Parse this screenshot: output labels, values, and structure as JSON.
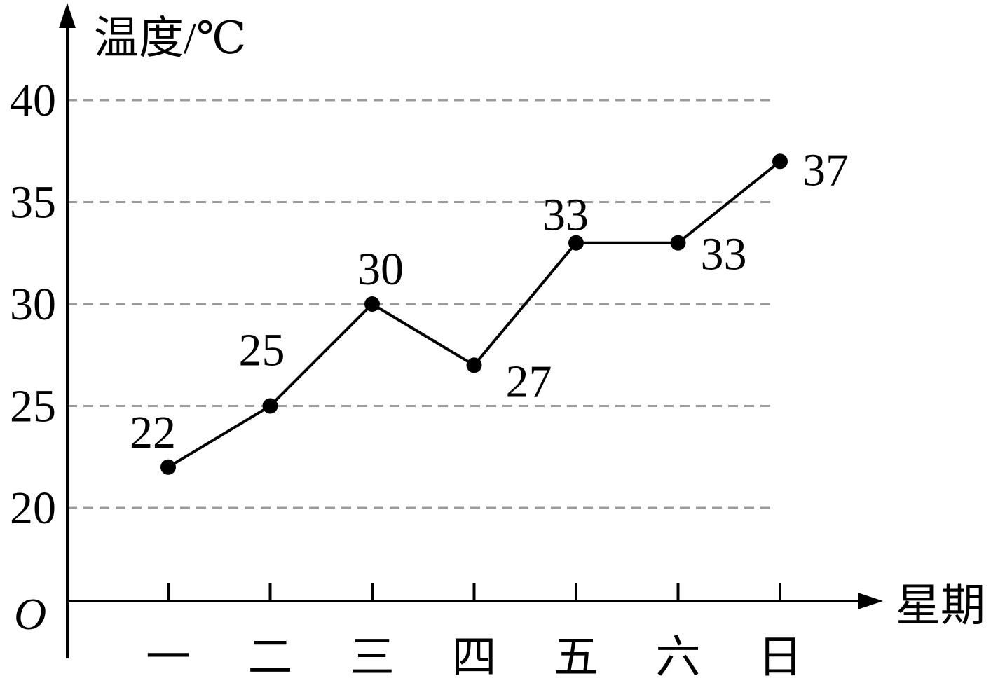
{
  "chart_data": {
    "type": "line",
    "ylabel": "温度/℃",
    "xlabel": "星期",
    "origin_label": "O",
    "categories": [
      "一",
      "二",
      "三",
      "四",
      "五",
      "六",
      "日"
    ],
    "series": [
      {
        "values": [
          22,
          25,
          30,
          27,
          33,
          33,
          37
        ]
      }
    ],
    "data_labels": [
      "22",
      "25",
      "30",
      "27",
      "33",
      "33",
      "37"
    ],
    "yticks": [
      20,
      25,
      30,
      35,
      40
    ],
    "ytick_labels": [
      "20",
      "25",
      "30",
      "35",
      "40"
    ],
    "ylim": [
      20,
      40
    ],
    "y_axis_break": true,
    "grid": "horizontal-dashed",
    "colors": {
      "line": "#000000",
      "grid": "#9a9a9a",
      "axis": "#000000"
    }
  }
}
